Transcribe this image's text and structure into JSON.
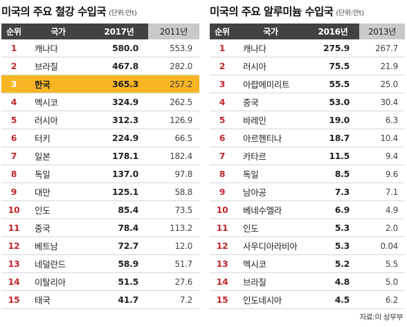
{
  "steel": {
    "title": "미국의 주요 철강 수입국",
    "unit": "(단위:만t)",
    "headers": {
      "rank": "순위",
      "country": "국가",
      "current": "2017년",
      "previous": "2011년"
    },
    "highlight_rank": 3,
    "rows": [
      {
        "rank": "1",
        "country": "캐나다",
        "current": "580.0",
        "previous": "553.9"
      },
      {
        "rank": "2",
        "country": "브라질",
        "current": "467.8",
        "previous": "282.0"
      },
      {
        "rank": "3",
        "country": "한국",
        "current": "365.3",
        "previous": "257.2"
      },
      {
        "rank": "4",
        "country": "멕시코",
        "current": "324.9",
        "previous": "262.5"
      },
      {
        "rank": "5",
        "country": "러시아",
        "current": "312.3",
        "previous": "126.9"
      },
      {
        "rank": "6",
        "country": "터키",
        "current": "224.9",
        "previous": "66.5"
      },
      {
        "rank": "7",
        "country": "일본",
        "current": "178.1",
        "previous": "182.4"
      },
      {
        "rank": "8",
        "country": "독일",
        "current": "137.0",
        "previous": "97.8"
      },
      {
        "rank": "9",
        "country": "대만",
        "current": "125.1",
        "previous": "58.8"
      },
      {
        "rank": "10",
        "country": "인도",
        "current": "85.4",
        "previous": "73.5"
      },
      {
        "rank": "11",
        "country": "중국",
        "current": "78.4",
        "previous": "113.2"
      },
      {
        "rank": "12",
        "country": "베트남",
        "current": "72.7",
        "previous": "12.0"
      },
      {
        "rank": "13",
        "country": "네덜란드",
        "current": "58.9",
        "previous": "51.7"
      },
      {
        "rank": "14",
        "country": "이탈리아",
        "current": "51.5",
        "previous": "27.6"
      },
      {
        "rank": "15",
        "country": "태국",
        "current": "41.7",
        "previous": "7.2"
      }
    ]
  },
  "aluminum": {
    "title": "미국의 주요 알루미늄 수입국",
    "unit": "(단위:만t)",
    "headers": {
      "rank": "순위",
      "country": "국가",
      "current": "2016년",
      "previous": "2013년"
    },
    "rows": [
      {
        "rank": "1",
        "country": "캐나다",
        "current": "275.9",
        "previous": "267.7"
      },
      {
        "rank": "2",
        "country": "러시아",
        "current": "75.5",
        "previous": "21.9"
      },
      {
        "rank": "3",
        "country": "아랍에미리트",
        "current": "55.5",
        "previous": "25.0"
      },
      {
        "rank": "4",
        "country": "중국",
        "current": "53.0",
        "previous": "30.4"
      },
      {
        "rank": "5",
        "country": "바레인",
        "current": "19.0",
        "previous": "6.3"
      },
      {
        "rank": "6",
        "country": "아르헨티나",
        "current": "18.7",
        "previous": "10.4"
      },
      {
        "rank": "7",
        "country": "카타르",
        "current": "11.5",
        "previous": "9.4"
      },
      {
        "rank": "8",
        "country": "독일",
        "current": "8.5",
        "previous": "9.6"
      },
      {
        "rank": "9",
        "country": "남아공",
        "current": "7.3",
        "previous": "7.1"
      },
      {
        "rank": "10",
        "country": "베네수엘라",
        "current": "6.9",
        "previous": "4.9"
      },
      {
        "rank": "11",
        "country": "인도",
        "current": "5.3",
        "previous": "2.0"
      },
      {
        "rank": "12",
        "country": "사우디아라비아",
        "current": "5.3",
        "previous": "0.04"
      },
      {
        "rank": "13",
        "country": "멕시코",
        "current": "5.2",
        "previous": "5.5"
      },
      {
        "rank": "14",
        "country": "브라질",
        "current": "4.8",
        "previous": "5.0"
      },
      {
        "rank": "15",
        "country": "인도네시아",
        "current": "4.5",
        "previous": "6.2"
      }
    ]
  },
  "source": "자료:미 상무부",
  "colors": {
    "header_bg": "#424242",
    "prev_header_bg": "#c9c9c9",
    "highlight": "#f8b524",
    "rank": "#c0272d"
  }
}
